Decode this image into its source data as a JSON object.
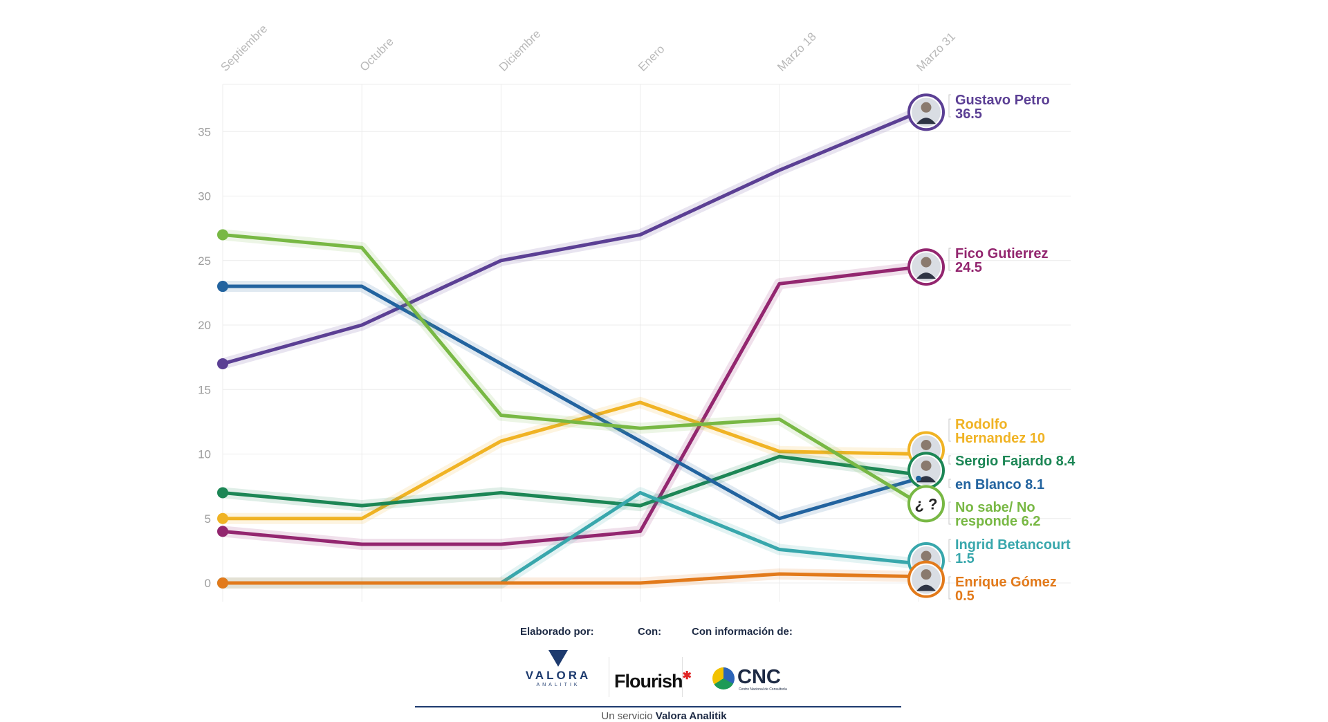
{
  "chart_data": {
    "type": "line",
    "x": [
      "Septiembre",
      "Octubre",
      "Diciembre",
      "Enero",
      "Marzo 18",
      "Marzo 31"
    ],
    "ylim": [
      0,
      37
    ],
    "yticks": [
      0,
      5,
      10,
      15,
      20,
      25,
      30,
      35
    ],
    "grid": true,
    "legend": "end-labels-right",
    "series": [
      {
        "name": "Gustavo Petro",
        "values": [
          17,
          20,
          25,
          27,
          32,
          36.5
        ],
        "color": "#5b3f94",
        "end_label": [
          "Gustavo Petro",
          "36.5"
        ],
        "marker": "photo"
      },
      {
        "name": "Fico Gutierrez",
        "values": [
          4,
          3,
          3,
          4,
          23.2,
          24.5
        ],
        "color": "#93266f",
        "end_label": [
          "Fico Gutierrez",
          "24.5"
        ],
        "marker": "photo"
      },
      {
        "name": "Rodolfo Hernandez",
        "values": [
          5,
          5,
          11,
          14,
          10.2,
          10
        ],
        "color": "#f0b324",
        "end_label": [
          "Rodolfo",
          "Hernandez 10"
        ],
        "marker": "photo"
      },
      {
        "name": "Sergio Fajardo",
        "values": [
          7,
          6,
          7,
          6,
          9.8,
          8.4
        ],
        "color": "#1c8655",
        "end_label": [
          "Sergio Fajardo 8.4"
        ],
        "marker": "photo"
      },
      {
        "name": "en Blanco",
        "values": [
          23,
          23,
          17,
          11,
          5,
          8.1
        ],
        "color": "#22639f",
        "end_label": [
          "en Blanco 8.1"
        ],
        "marker": "none"
      },
      {
        "name": "No sabe/ No responde",
        "values": [
          27,
          26,
          13,
          12,
          12.7,
          6.2
        ],
        "color": "#78b844",
        "end_label": [
          "No sabe/ No",
          "responde 6.2"
        ],
        "marker": "question"
      },
      {
        "name": "Ingrid Betancourt",
        "values": [
          0,
          0,
          0,
          7,
          2.6,
          1.5
        ],
        "color": "#38a7ac",
        "end_label": [
          "Ingrid Betancourt",
          "1.5"
        ],
        "marker": "photo"
      },
      {
        "name": "Enrique Gómez",
        "values": [
          0,
          0,
          0,
          0,
          0.7,
          0.5
        ],
        "color": "#e27a1b",
        "end_label": [
          "Enrique Gómez",
          "0.5"
        ],
        "marker": "photo"
      }
    ],
    "question_marker_text": "¿ ?"
  },
  "footer": {
    "elaborado_label": "Elaborado por:",
    "con_label": "Con:",
    "info_label": "Con información de:",
    "valora_logo_text": "VALORA",
    "valora_logo_sub": "ANALITIK",
    "flourish_logo_text": "Flourish",
    "cnc_logo_text": "CNC",
    "cnc_logo_sub": "Centro Nacional de Consultoría",
    "service_prefix": "Un servicio",
    "service_brand": "Valora Analitik"
  }
}
